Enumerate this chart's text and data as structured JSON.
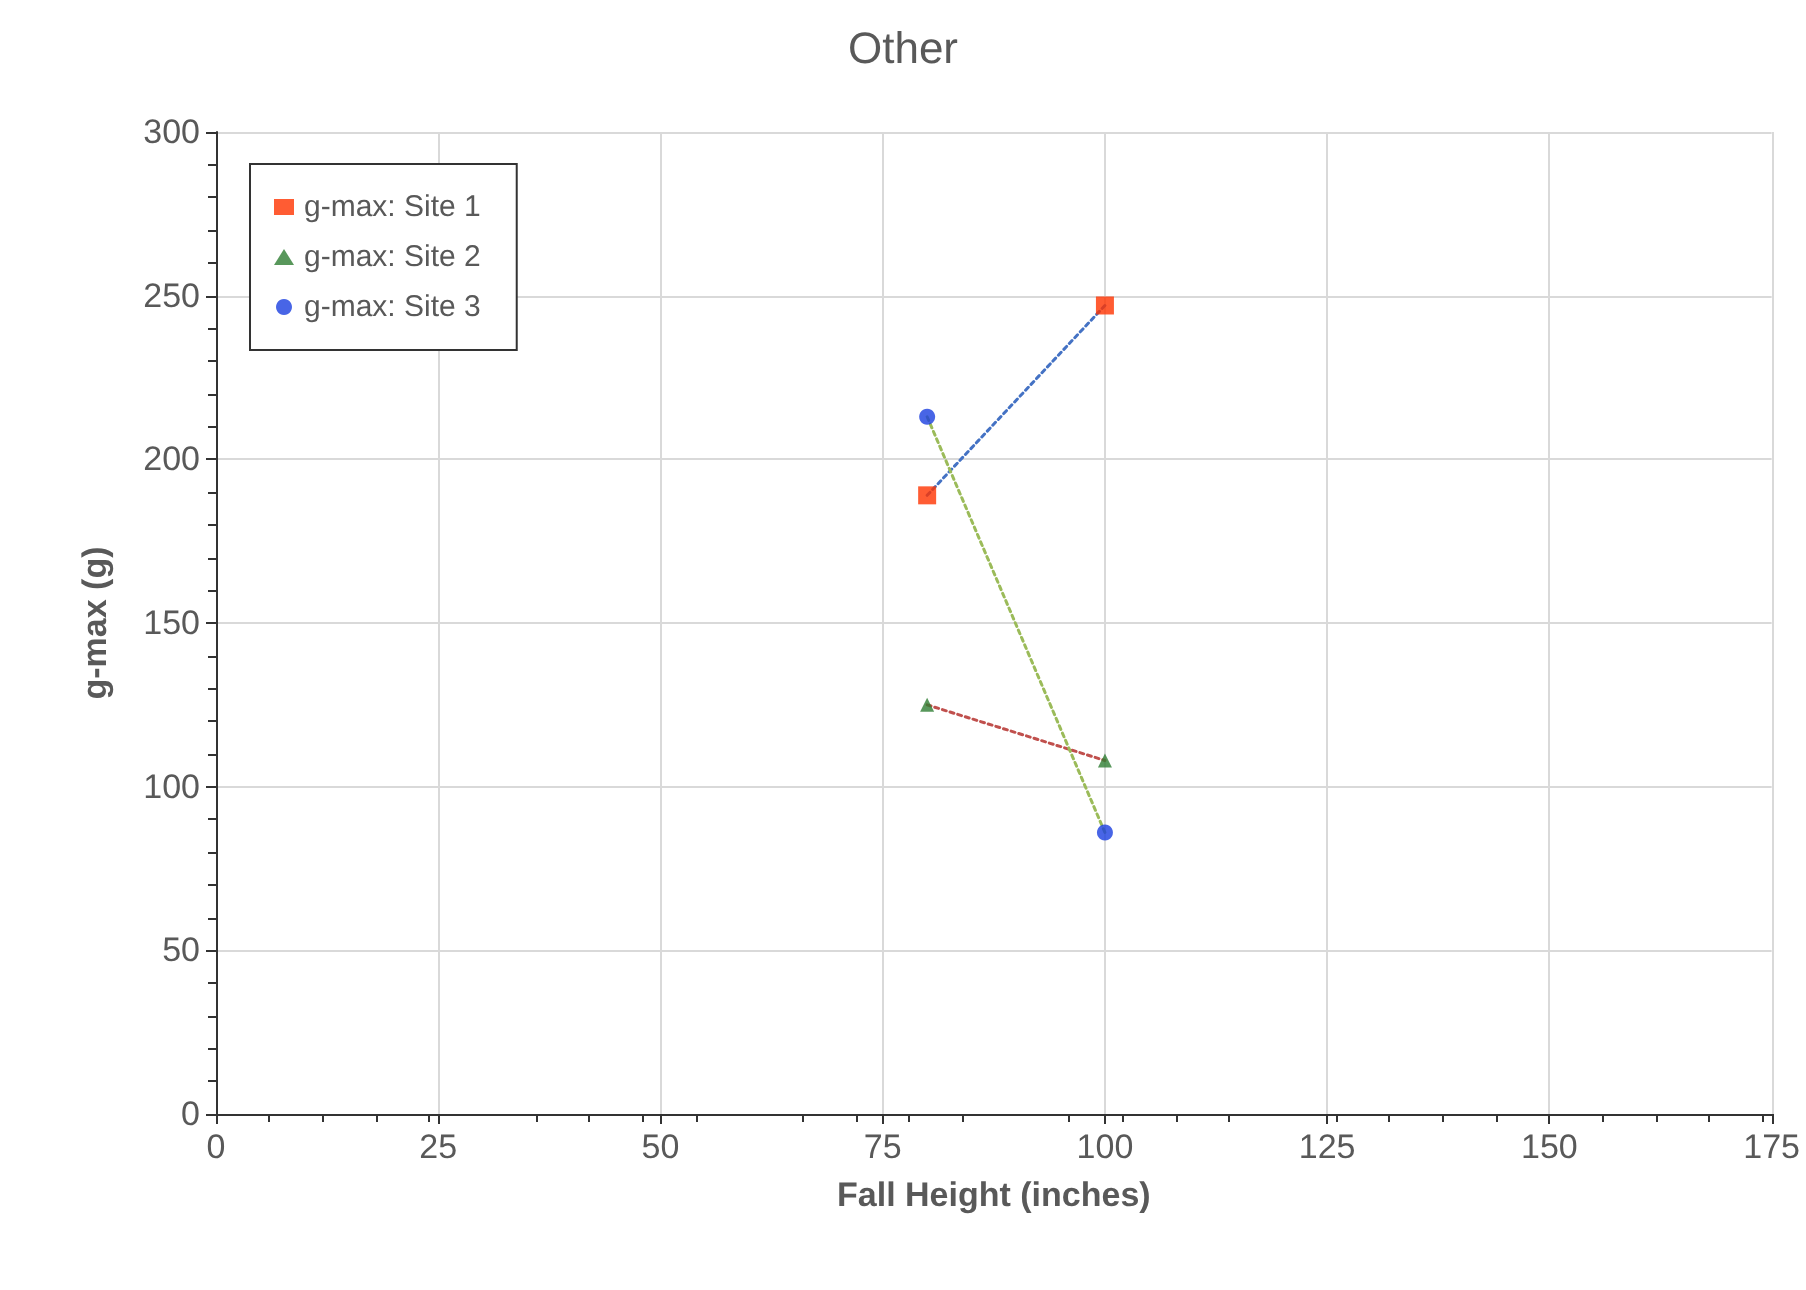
{
  "chart_data": {
    "type": "scatter",
    "title": "Other",
    "xlabel": "Fall Height (inches)",
    "ylabel": "g-max (g)",
    "xlim": [
      0,
      175
    ],
    "xticks": [
      0,
      25,
      50,
      75,
      100,
      125,
      150,
      175
    ],
    "ylim": [
      0,
      300
    ],
    "yticks": [
      0,
      50,
      100,
      150,
      200,
      250,
      300
    ],
    "grid": true,
    "legend": "top left",
    "x": [
      80,
      100
    ],
    "series": [
      {
        "type": "line",
        "color": "#4472c4",
        "values": [
          189,
          247
        ],
        "marker": "none",
        "line_style": "dotted"
      },
      {
        "type": "line",
        "color": "#c0504d",
        "values": [
          125,
          108
        ],
        "marker": "none",
        "line_style": "dotted"
      },
      {
        "type": "line",
        "color": "#9bbb59",
        "values": [
          213,
          86
        ],
        "marker": "none",
        "line_style": "dotted"
      },
      {
        "name": "g-max: Site 1",
        "color": "#ff3300",
        "values": [
          189,
          247
        ],
        "marker": "square"
      },
      {
        "name": "g-max: Site 2",
        "color": "#2e7d32",
        "values": [
          125,
          108
        ],
        "marker": "triangle"
      },
      {
        "name": "g-max: Site 3",
        "color": "#1a3fe0",
        "values": [
          213,
          86
        ],
        "marker": "circle"
      }
    ]
  }
}
